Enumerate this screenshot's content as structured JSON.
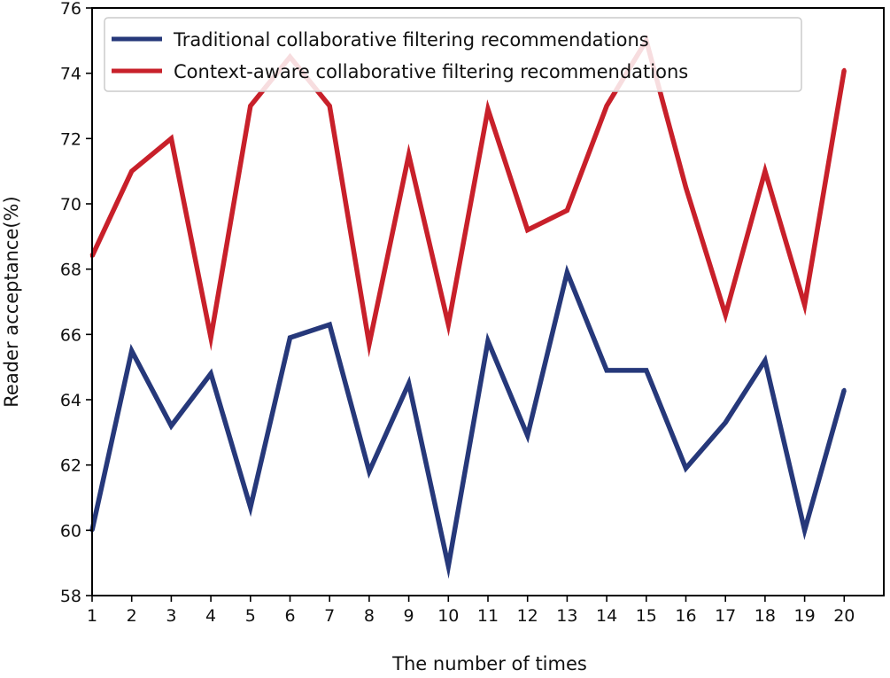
{
  "chart_data": {
    "type": "line",
    "title": "",
    "xlabel": "The number of times",
    "ylabel": "Reader acceptance(%)",
    "x": [
      1,
      2,
      3,
      4,
      5,
      6,
      7,
      8,
      9,
      10,
      11,
      12,
      13,
      14,
      15,
      16,
      17,
      18,
      19,
      20
    ],
    "xlim": [
      1,
      21
    ],
    "ylim": [
      58,
      76
    ],
    "yticks": [
      58,
      60,
      62,
      64,
      66,
      68,
      70,
      72,
      74,
      76
    ],
    "grid": false,
    "legend_position": "top-left",
    "series": [
      {
        "name": "Traditional collaborative filtering recommendations",
        "color": "#26387a",
        "values": [
          60.0,
          65.5,
          63.2,
          64.8,
          60.7,
          65.9,
          66.3,
          61.8,
          64.5,
          58.9,
          65.8,
          62.9,
          67.9,
          64.9,
          64.9,
          61.9,
          63.3,
          65.2,
          60.0,
          64.3
        ]
      },
      {
        "name": "Context-aware collaborative filtering recommendations",
        "color": "#c8202a",
        "values": [
          68.4,
          71.0,
          72.0,
          65.9,
          73.0,
          74.5,
          73.0,
          65.7,
          71.5,
          66.3,
          72.9,
          69.2,
          69.8,
          73.0,
          75.0,
          70.5,
          66.6,
          71.0,
          66.9,
          74.1
        ]
      }
    ]
  }
}
